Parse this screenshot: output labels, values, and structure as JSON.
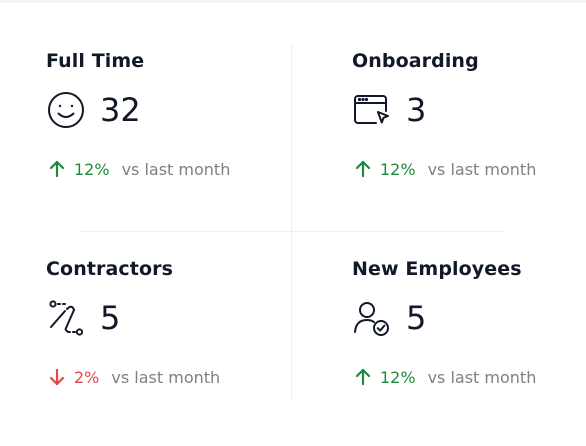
{
  "stats": [
    {
      "title": "Full Time",
      "icon": "smiley-face-icon",
      "value": "32",
      "trend_direction": "up",
      "trend_pct": "12%",
      "trend_label": "vs last month"
    },
    {
      "title": "Onboarding",
      "icon": "browser-window-cursor-icon",
      "value": "3",
      "trend_direction": "up",
      "trend_pct": "12%",
      "trend_label": "vs last month"
    },
    {
      "title": "Contractors",
      "icon": "route-path-icon",
      "value": "5",
      "trend_direction": "down",
      "trend_pct": "2%",
      "trend_label": "vs last month"
    },
    {
      "title": "New Employees",
      "icon": "user-verified-icon",
      "value": "5",
      "trend_direction": "up",
      "trend_pct": "12%",
      "trend_label": "vs last month"
    }
  ],
  "colors": {
    "up": "#1e8a3a",
    "down": "#e04848",
    "muted": "#7b7f86",
    "text": "#111827",
    "divider": "#eceef1"
  }
}
